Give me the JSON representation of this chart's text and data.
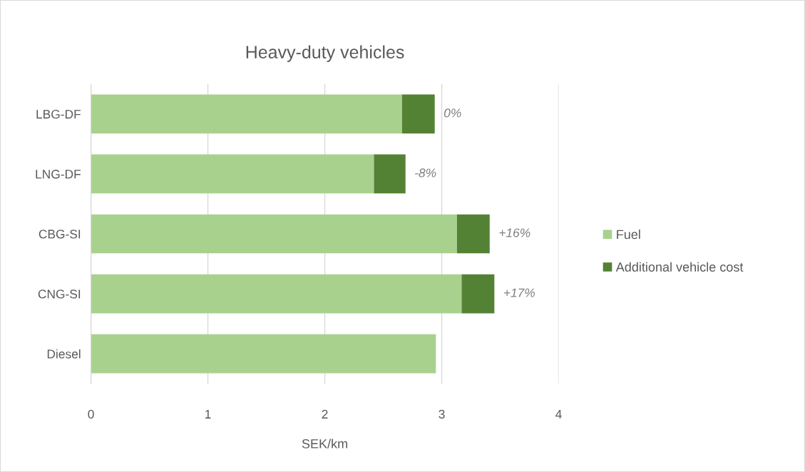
{
  "chart_data": {
    "type": "bar",
    "orientation": "horizontal",
    "stacked": true,
    "title": "Heavy-duty vehicles",
    "xlabel": "SEK/km",
    "categories": [
      "LBG-DF",
      "LNG-DF",
      "CBG-SI",
      "CNG-SI",
      "Diesel"
    ],
    "series": [
      {
        "name": "Fuel",
        "color": "#a9d18e",
        "values": [
          2.66,
          2.42,
          3.13,
          3.17,
          2.95
        ]
      },
      {
        "name": "Additional vehicle cost",
        "color": "#548235",
        "values": [
          0.28,
          0.27,
          0.28,
          0.28,
          null
        ]
      }
    ],
    "xlim": [
      0,
      4
    ],
    "xticks": [
      0,
      1,
      2,
      3,
      4
    ],
    "grid": "x",
    "legend": "right",
    "annotations": [
      {
        "text": "0%",
        "x": 2.94,
        "y": "LBG-DF"
      },
      {
        "text": "-8%",
        "x": 2.69,
        "y": "LNG-DF"
      },
      {
        "text": "+16%",
        "x": 3.41,
        "y": "CBG-SI"
      },
      {
        "text": "+17%",
        "x": 3.45,
        "y": "CNG-SI"
      }
    ]
  }
}
